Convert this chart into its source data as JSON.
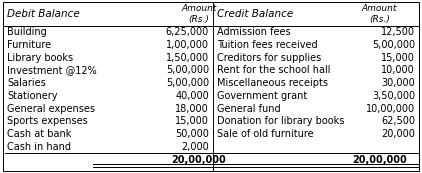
{
  "debit_header": "Debit Balance",
  "debit_amount_header": "Amount\n(Rs.)",
  "credit_header": "Credit Balance",
  "credit_amount_header": "Amount\n(Rs.)",
  "debit_items": [
    "Building",
    "Furniture",
    "Library books",
    "Investment @12%",
    "Salaries",
    "Stationery",
    "General expenses",
    "Sports expenses",
    "Cash at bank",
    "Cash in hand"
  ],
  "debit_amounts": [
    "6,25,000",
    "1,00,000",
    "1,50,000",
    "5,00,000",
    "5,00,000",
    "40,000",
    "18,000",
    "15,000",
    "50,000",
    "2,000"
  ],
  "debit_total": "20,00,000",
  "credit_items": [
    "Admission fees",
    "Tuition fees received",
    "Creditors for supplies",
    "Rent for the school hall",
    "Miscellaneous receipts",
    "Government grant",
    "General fund",
    "Donation for library books",
    "Sale of old furniture",
    ""
  ],
  "credit_amounts": [
    "12,500",
    "5,00,000",
    "15,000",
    "10,000",
    "30,000",
    "3,50,000",
    "10,00,000",
    "62,500",
    "20,000",
    ""
  ],
  "credit_total": "20,00,000",
  "bg_color": "#ffffff",
  "text_color": "#000000",
  "font_size": 7.0,
  "header_font_size": 7.5
}
